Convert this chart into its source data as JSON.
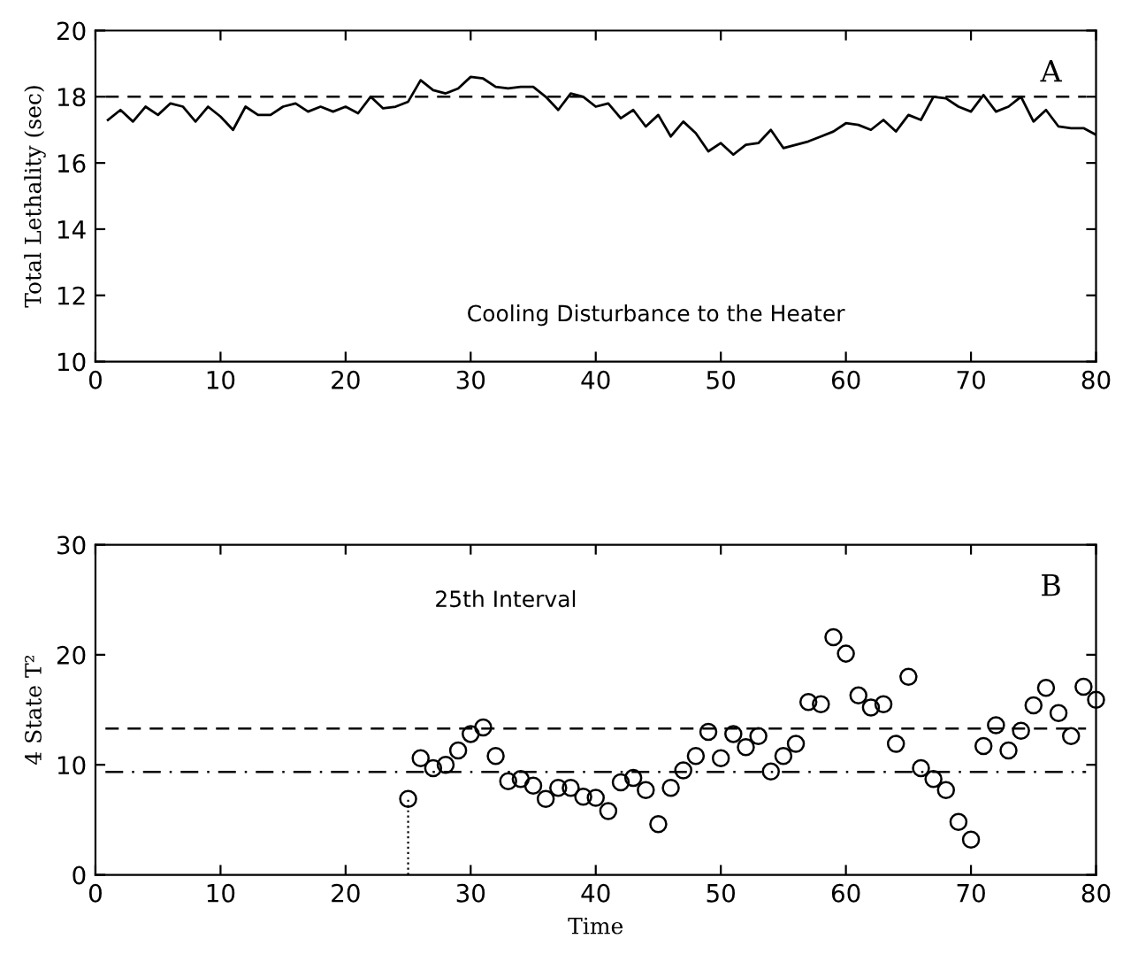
{
  "chart_data": [
    {
      "type": "line",
      "ylabel": "Total Lethality (sec)",
      "annotations": [
        "A",
        "Cooling Disturbance to the Heater"
      ],
      "x": [
        1,
        2,
        3,
        4,
        5,
        6,
        7,
        8,
        9,
        10,
        11,
        12,
        13,
        14,
        15,
        16,
        17,
        18,
        19,
        20,
        21,
        22,
        23,
        24,
        25,
        26,
        27,
        28,
        29,
        30,
        31,
        32,
        33,
        34,
        35,
        36,
        37,
        38,
        39,
        40,
        41,
        42,
        43,
        44,
        45,
        46,
        47,
        48,
        49,
        50,
        51,
        52,
        53,
        54,
        55,
        56,
        57,
        58,
        59,
        60,
        61,
        62,
        63,
        64,
        65,
        66,
        67,
        68,
        69,
        70,
        71,
        72,
        73,
        74,
        75,
        76,
        77,
        78,
        79,
        80
      ],
      "series": [
        {
          "color": "#000000",
          "values": [
            17.3,
            17.6,
            17.25,
            17.7,
            17.45,
            17.8,
            17.7,
            17.25,
            17.7,
            17.4,
            17.0,
            17.7,
            17.45,
            17.45,
            17.7,
            17.8,
            17.55,
            17.7,
            17.55,
            17.7,
            17.5,
            18.0,
            17.65,
            17.7,
            17.85,
            18.5,
            18.2,
            18.1,
            18.25,
            18.6,
            18.55,
            18.3,
            18.25,
            18.3,
            18.3,
            18.0,
            17.6,
            18.1,
            18.0,
            17.7,
            17.8,
            17.35,
            17.6,
            17.1,
            17.45,
            16.8,
            17.25,
            16.9,
            16.35,
            16.6,
            16.25,
            16.55,
            16.6,
            17.0,
            16.45,
            16.55,
            16.65,
            16.8,
            16.95,
            17.2,
            17.15,
            17.0,
            17.3,
            16.95,
            17.45,
            17.3,
            18.0,
            17.95,
            17.7,
            17.55,
            18.05,
            17.55,
            17.7,
            18.0,
            17.25,
            17.6,
            17.1,
            17.05,
            17.05,
            16.85
          ]
        }
      ],
      "ref_lines": [
        {
          "axis": "y",
          "value": 18,
          "line_style": "dashed"
        }
      ],
      "xlim": [
        0,
        80
      ],
      "xticks": [
        0,
        10,
        20,
        30,
        40,
        50,
        60,
        70,
        80
      ],
      "ylim": [
        10,
        20
      ],
      "yticks": [
        10,
        12,
        14,
        16,
        18,
        20
      ],
      "grid": false,
      "legend": false,
      "line_style": "solid",
      "marker": "none"
    },
    {
      "type": "scatter",
      "xlabel": "Time",
      "ylabel": "4 State T²",
      "annotations": [
        "B",
        "25th Interval"
      ],
      "x": [
        25,
        26,
        27,
        28,
        29,
        30,
        31,
        32,
        33,
        34,
        35,
        36,
        37,
        38,
        39,
        40,
        41,
        42,
        43,
        44,
        45,
        46,
        47,
        48,
        49,
        50,
        51,
        52,
        53,
        54,
        55,
        56,
        57,
        58,
        59,
        60,
        61,
        62,
        63,
        64,
        65,
        66,
        67,
        68,
        69,
        70,
        71,
        72,
        73,
        74,
        75,
        76,
        77,
        78,
        79,
        80
      ],
      "series": [
        {
          "color": "#000000",
          "values": [
            6.9,
            10.6,
            9.7,
            10.0,
            11.3,
            12.8,
            13.4,
            10.8,
            8.5,
            8.7,
            8.1,
            6.9,
            7.9,
            7.9,
            7.1,
            7.0,
            5.8,
            8.4,
            8.8,
            7.7,
            4.6,
            7.9,
            9.5,
            10.8,
            13.0,
            10.6,
            12.8,
            11.6,
            12.6,
            9.4,
            10.8,
            11.9,
            15.7,
            15.5,
            21.6,
            20.1,
            16.3,
            15.2,
            15.5,
            11.9,
            18.0,
            9.7,
            8.7,
            7.7,
            4.8,
            3.2,
            11.7,
            13.6,
            11.3,
            13.1,
            15.4,
            17.0,
            14.7,
            12.6,
            17.1,
            15.9
          ]
        }
      ],
      "ref_lines": [
        {
          "axis": "y",
          "value": 13.3,
          "line_style": "dashed"
        },
        {
          "axis": "y",
          "value": 9.35,
          "line_style": "dashdot"
        },
        {
          "axis": "x",
          "value": 25,
          "line_style": "dotted"
        }
      ],
      "xlim": [
        0,
        80
      ],
      "xticks": [
        0,
        10,
        20,
        30,
        40,
        50,
        60,
        70,
        80
      ],
      "ylim": [
        0,
        30
      ],
      "yticks": [
        0,
        10,
        20,
        30
      ],
      "grid": false,
      "legend": false,
      "marker": "circle"
    }
  ]
}
